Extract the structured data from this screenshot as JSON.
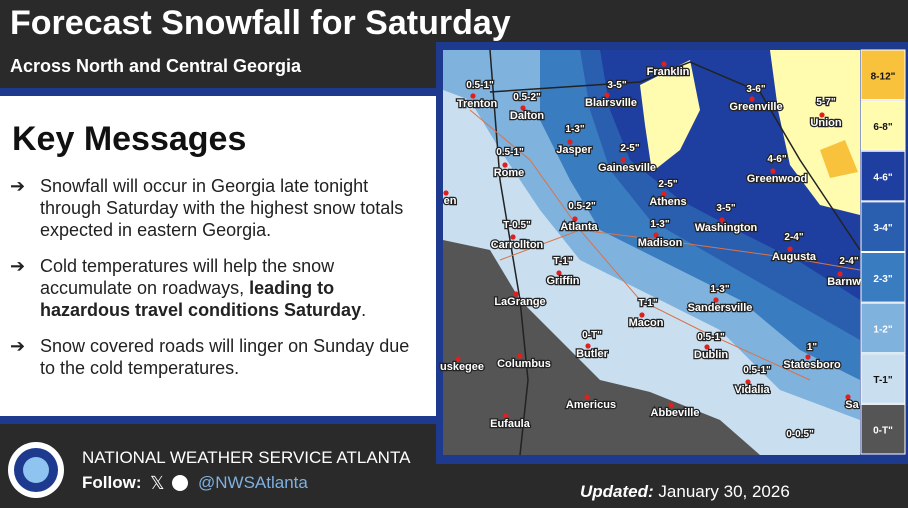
{
  "header": {
    "title": "Forecast Snowfall for Saturday",
    "subtitle": "Across North and Central Georgia"
  },
  "key_messages": {
    "heading": "Key Messages",
    "items": [
      [
        {
          "text": "Snowfall will occur in Georgia late tonight through Saturday with the highest snow totals expected in eastern Georgia."
        }
      ],
      [
        {
          "text": "Cold temperatures will help the snow accumulate on roadways, "
        },
        {
          "text": "leading to hazardous travel conditions Saturday",
          "bold": true
        },
        {
          "text": "."
        }
      ],
      [
        {
          "text": "Snow covered roads will linger on Sunday due to the cold temperatures."
        }
      ]
    ]
  },
  "map": {
    "cities": [
      "Trenton",
      "Dalton",
      "Blairsville",
      "Franklin",
      "Greenville",
      "Union",
      "Jasper",
      "Rome",
      "Gainesville",
      "Greenwood",
      "Athens",
      "Washington",
      "Atlanta",
      "Madison",
      "Carrollton",
      "Augusta",
      "Barnw",
      "Griffin",
      "Sandersville",
      "LaGrange",
      "Macon",
      "Butler",
      "Dublin",
      "Statesboro",
      "Columbus",
      "Vidalia",
      "uskegee",
      "Americus",
      "Abbeville",
      "Eufaula",
      "en",
      "Sa"
    ],
    "snow_labels": [
      "0.5-1\"",
      "0.5-2\"",
      "3-5\"",
      "3-6\"",
      "5-7\"",
      "1-3\"",
      "0.5-1\"",
      "2-5\"",
      "4-6\"",
      "2-5\"",
      "3-5\"",
      "0.5-2\"",
      "1-3\"",
      "T-0.5\"",
      "2-4\"",
      "2-4\"",
      "T-1\"",
      "1-3\"",
      "T-1\"",
      "0-T\"",
      "0.5-1\"",
      "1\"",
      "0.5-1\"",
      "0-0.5\""
    ],
    "legend": [
      {
        "label": "8-12\"",
        "color": "#f9c23c"
      },
      {
        "label": "6-8\"",
        "color": "#fffcb0"
      },
      {
        "label": "4-6\"",
        "color": "#1f3fa0"
      },
      {
        "label": "3-4\"",
        "color": "#2a5fb0"
      },
      {
        "label": "2-3\"",
        "color": "#3a7cc0"
      },
      {
        "label": "1-2\"",
        "color": "#7fb2dd"
      },
      {
        "label": "T-1\"",
        "color": "#c9dff0"
      },
      {
        "label": "0-T\"",
        "color": "#555555"
      }
    ]
  },
  "footer": {
    "agency": "NATIONAL WEATHER SERVICE ATLANTA",
    "follow": "Follow:",
    "handle": "@NWSAtlanta",
    "updated_label": "Updated:",
    "updated_date": "January 30, 2026"
  }
}
